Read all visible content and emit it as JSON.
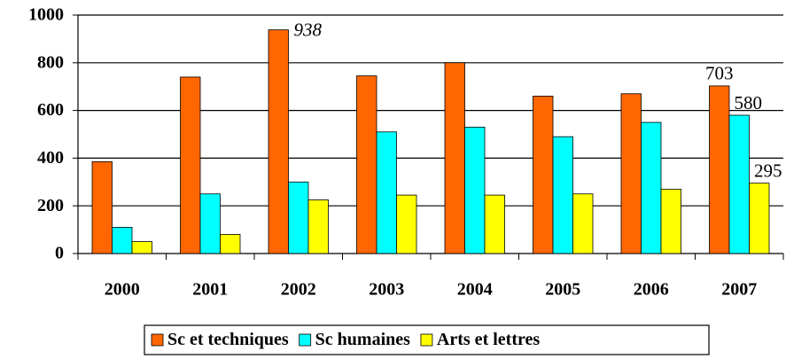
{
  "chart_data": {
    "type": "bar",
    "categories": [
      "2000",
      "2001",
      "2002",
      "2003",
      "2004",
      "2005",
      "2006",
      "2007"
    ],
    "series": [
      {
        "name": "Sc et techniques",
        "color": "#ff6600",
        "values": [
          385,
          740,
          938,
          745,
          800,
          660,
          670,
          703
        ],
        "value_labels": [
          null,
          null,
          "938",
          null,
          null,
          null,
          null,
          "703"
        ]
      },
      {
        "name": "Sc humaines",
        "color": "#00ffff",
        "values": [
          110,
          250,
          300,
          510,
          530,
          490,
          550,
          580
        ],
        "value_labels": [
          null,
          null,
          null,
          null,
          null,
          null,
          null,
          "580"
        ]
      },
      {
        "name": "Arts et lettres",
        "color": "#ffff00",
        "values": [
          50,
          80,
          225,
          245,
          245,
          250,
          270,
          295
        ],
        "value_labels": [
          null,
          null,
          null,
          null,
          null,
          null,
          null,
          "295"
        ]
      }
    ],
    "ylim": [
      0,
      1000
    ],
    "yticks": [
      0,
      200,
      400,
      600,
      800,
      1000
    ],
    "grid": true,
    "legend": "bottom"
  }
}
